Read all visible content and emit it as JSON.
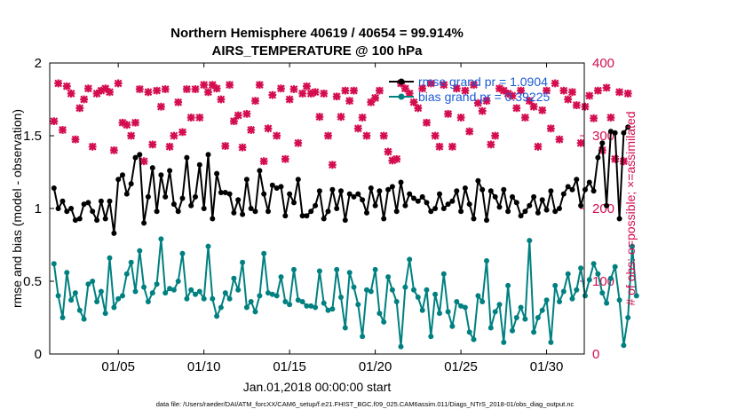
{
  "chart_data": {
    "type": "line",
    "title_line1": "Northern Hemisphere 40619 / 40654 = 99.914%",
    "title_line2": "AIRS_TEMPERATURE @ 100 hPa",
    "xlabel": "Jan.01,2018 00:00:00 start",
    "ylabel_left": "rmse and bias (model - observation)",
    "ylabel_right": "# of obs: o=possible; ×=assimilated",
    "xlim": [
      1,
      32.2
    ],
    "ylim_left": [
      0,
      2
    ],
    "ylim_right": [
      0,
      400
    ],
    "x_ticks": [
      5,
      10,
      15,
      20,
      25,
      30
    ],
    "x_tick_labels": [
      "01/05",
      "01/10",
      "01/15",
      "01/20",
      "01/25",
      "01/30"
    ],
    "y_ticks_left": [
      0,
      0.5,
      1,
      1.5,
      2
    ],
    "y_tick_labels_left": [
      "0",
      "0.5",
      "1",
      "1.5",
      "2"
    ],
    "y_ticks_right": [
      0,
      100,
      200,
      300,
      400
    ],
    "y_tick_labels_right": [
      "0",
      "100",
      "200",
      "300",
      "400"
    ],
    "legend": [
      {
        "label": "rmse grand pr = 1.0904",
        "color": "#000000"
      },
      {
        "label": "bias grand pr = 0.39225",
        "color": "#008080"
      }
    ],
    "colors": {
      "rmse": "#000000",
      "bias": "#008080",
      "obs": "#d40d4e",
      "right_axis": "#d40d4e"
    },
    "x_start": 1.25,
    "x_step": 0.25,
    "series": [
      {
        "name": "rmse",
        "axis": "left",
        "values": [
          1.14,
          1.0,
          1.05,
          0.98,
          1.0,
          0.92,
          0.93,
          1.03,
          1.04,
          0.98,
          0.92,
          1.05,
          0.93,
          1.05,
          0.83,
          1.2,
          1.23,
          1.1,
          1.17,
          1.35,
          1.37,
          0.9,
          1.08,
          1.28,
          0.98,
          1.23,
          1.08,
          1.26,
          1.03,
          0.98,
          1.07,
          1.35,
          1.02,
          1.08,
          1.3,
          1.0,
          1.37,
          0.93,
          1.24,
          1.11,
          1.11,
          1.1,
          0.97,
          1.06,
          0.96,
          1.2,
          1.0,
          0.98,
          1.26,
          1.1,
          0.98,
          1.16,
          1.14,
          1.15,
          0.95,
          1.1,
          1.04,
          1.2,
          0.95,
          0.95,
          0.98,
          1.02,
          1.12,
          0.93,
          0.98,
          1.13,
          1.0,
          1.12,
          0.92,
          1.1,
          1.08,
          1.1,
          1.06,
          0.97,
          1.14,
          1.02,
          1.12,
          0.93,
          1.13,
          1.15,
          0.98,
          1.18,
          1.02,
          1.1,
          1.07,
          1.05,
          1.08,
          1.04,
          0.98,
          1.0,
          1.1,
          1.0,
          1.03,
          1.05,
          1.12,
          0.98,
          1.14,
          1.03,
          0.93,
          1.19,
          1.13,
          0.92,
          1.12,
          1.08,
          1.01,
          1.13,
          0.98,
          1.08,
          1.04,
          0.95,
          0.98,
          1.02,
          1.08,
          0.97,
          1.06,
          0.99,
          1.12,
          0.98,
          1.0,
          1.1,
          1.15,
          1.13,
          1.2,
          1.02,
          1.13,
          1.18,
          1.12,
          1.35,
          1.45,
          1.02,
          1.53,
          1.52,
          0.93,
          1.52,
          1.56
        ]
      },
      {
        "name": "bias",
        "axis": "left",
        "values": [
          0.62,
          0.4,
          0.25,
          0.56,
          0.37,
          0.42,
          0.3,
          0.24,
          0.48,
          0.5,
          0.36,
          0.43,
          0.28,
          0.66,
          0.32,
          0.38,
          0.4,
          0.55,
          0.63,
          0.43,
          0.71,
          0.46,
          0.36,
          0.42,
          0.48,
          0.79,
          0.42,
          0.45,
          0.44,
          0.5,
          0.69,
          0.38,
          0.44,
          0.41,
          0.43,
          0.38,
          0.74,
          0.38,
          0.26,
          0.32,
          0.42,
          0.38,
          0.52,
          0.44,
          0.63,
          0.32,
          0.36,
          0.29,
          0.4,
          0.69,
          0.42,
          0.41,
          0.4,
          0.53,
          0.36,
          0.34,
          0.58,
          0.37,
          0.36,
          0.33,
          0.33,
          0.32,
          0.57,
          0.35,
          0.3,
          0.31,
          0.58,
          0.39,
          0.18,
          0.56,
          0.46,
          0.34,
          0.12,
          0.44,
          0.43,
          0.58,
          0.28,
          0.22,
          0.53,
          0.44,
          0.36,
          0.05,
          0.46,
          0.65,
          0.44,
          0.39,
          0.3,
          0.44,
          0.12,
          0.41,
          0.28,
          0.55,
          0.29,
          0.19,
          0.36,
          0.33,
          0.32,
          0.15,
          0.1,
          0.4,
          0.36,
          0.64,
          0.18,
          0.29,
          0.34,
          0.08,
          0.47,
          0.16,
          0.25,
          0.32,
          0.24,
          0.78,
          0.15,
          0.25,
          0.3,
          0.37,
          0.08,
          0.47,
          0.36,
          0.43,
          0.55,
          0.38,
          0.44,
          0.59,
          0.4,
          0.51,
          0.62,
          0.55,
          0.42,
          0.35,
          0.52,
          0.6,
          0.37,
          0.06,
          0.25,
          0.74,
          0.4
        ]
      },
      {
        "name": "obs_assimilated",
        "axis": "right",
        "values": [
          320,
          372,
          308,
          368,
          358,
          295,
          338,
          350,
          365,
          285,
          358,
          362,
          365,
          360,
          280,
          372,
          318,
          315,
          300,
          318,
          364,
          265,
          360,
          288,
          362,
          340,
          364,
          285,
          300,
          346,
          305,
          364,
          325,
          364,
          325,
          370,
          360,
          370,
          365,
          350,
          286,
          370,
          320,
          328,
          284,
          330,
          308,
          348,
          370,
          265,
          310,
          356,
          300,
          365,
          268,
          350,
          364,
          290,
          358,
          368,
          358,
          360,
          326,
          358,
          300,
          260,
          354,
          326,
          362,
          348,
          362,
          310,
          325,
          300,
          346,
          352,
          362,
          300,
          278,
          266,
          268,
          372,
          365,
          358,
          346,
          338,
          365,
          318,
          372,
          300,
          285,
          370,
          330,
          285,
          365,
          325,
          362,
          306,
          370,
          345,
          334,
          348,
          288,
          300,
          365,
          362,
          358,
          355,
          338,
          362,
          325,
          348,
          340,
          285,
          335,
          362,
          310,
          372,
          295,
          362,
          350,
          360,
          342,
          290,
          340,
          355,
          324,
          362,
          280,
          366,
          325,
          268,
          360,
          265,
          358
        ]
      }
    ]
  },
  "footer": "data file: /Users/raeder/DAI/ATM_forcXX/CAM6_setup/f.e21.FHIST_BGC.f09_025.CAM6assim.011/Diags_NTrS_2018-01/obs_diag_output.nc"
}
